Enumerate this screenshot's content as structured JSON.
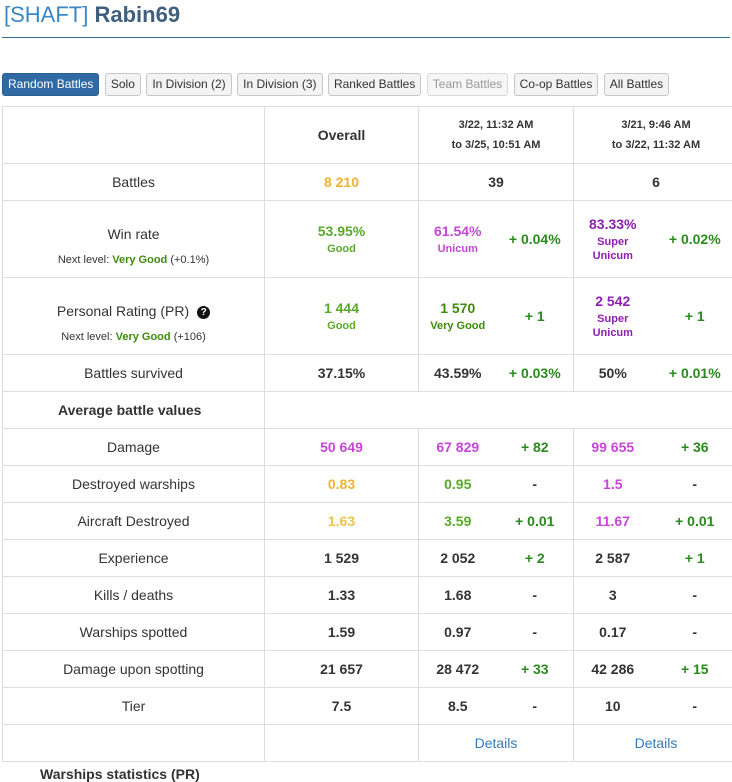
{
  "header": {
    "clan": "[SHAFT]",
    "nick": "Rabin69"
  },
  "tabs": [
    "Random Battles",
    "Solo",
    "In Division (2)",
    "In Division (3)",
    "Ranked Battles",
    "Team Battles",
    "Co-op Battles",
    "All Battles"
  ],
  "columns": {
    "overall": "Overall",
    "period1": {
      "line1": "3/22, 11:32 AM",
      "line2": "to 3/25, 10:51 AM"
    },
    "period2": {
      "line1": "3/21, 9:46 AM",
      "line2": "to 3/22, 11:32 AM"
    }
  },
  "rows": {
    "battles": {
      "label": "Battles",
      "overall": "8 210",
      "p1": "39",
      "p2": "6"
    },
    "winrate": {
      "label": "Win rate",
      "overall": "53.95%",
      "overall_tier": "Good",
      "p1": "61.54%",
      "p1_tier": "Unicum",
      "p1_delta": "+ 0.04%",
      "p2": "83.33%",
      "p2_tier1": "Super",
      "p2_tier2": "Unicum",
      "p2_delta": "+ 0.02%",
      "next_prefix": "Next level:",
      "next_level": "Very Good",
      "next_delta": "(+0.1%)"
    },
    "pr": {
      "label": "Personal Rating (PR)",
      "help": "?",
      "overall": "1 444",
      "overall_tier": "Good",
      "p1": "1 570",
      "p1_tier": "Very Good",
      "p1_delta": "+ 1",
      "p2": "2 542",
      "p2_tier1": "Super",
      "p2_tier2": "Unicum",
      "p2_delta": "+ 1",
      "next_prefix": "Next level:",
      "next_level": "Very Good",
      "next_delta": "(+106)"
    },
    "survived": {
      "label": "Battles survived",
      "overall": "37.15%",
      "p1": "43.59%",
      "p1_delta": "+ 0.03%",
      "p2": "50%",
      "p2_delta": "+ 0.01%"
    },
    "section": "Average battle values",
    "damage": {
      "label": "Damage",
      "overall": "50 649",
      "p1": "67 829",
      "p1_delta": "+ 82",
      "p2": "99 655",
      "p2_delta": "+ 36"
    },
    "destroyed": {
      "label": "Destroyed warships",
      "overall": "0.83",
      "p1": "0.95",
      "p1_delta": "-",
      "p2": "1.5",
      "p2_delta": "-"
    },
    "aircraft": {
      "label": "Aircraft Destroyed",
      "overall": "1.63",
      "p1": "3.59",
      "p1_delta": "+ 0.01",
      "p2": "11.67",
      "p2_delta": "+ 0.01"
    },
    "experience": {
      "label": "Experience",
      "overall": "1 529",
      "p1": "2 052",
      "p1_delta": "+ 2",
      "p2": "2 587",
      "p2_delta": "+ 1"
    },
    "kd": {
      "label": "Kills / deaths",
      "overall": "1.33",
      "p1": "1.68",
      "p1_delta": "-",
      "p2": "3",
      "p2_delta": "-"
    },
    "spotted": {
      "label": "Warships spotted",
      "overall": "1.59",
      "p1": "0.97",
      "p1_delta": "-",
      "p2": "0.17",
      "p2_delta": "-"
    },
    "spotdmg": {
      "label": "Damage upon spotting",
      "overall": "21 657",
      "p1": "28 472",
      "p1_delta": "+ 33",
      "p2": "42 286",
      "p2_delta": "+ 15"
    },
    "tier": {
      "label": "Tier",
      "overall": "7.5",
      "p1": "8.5",
      "p1_delta": "-",
      "p2": "10",
      "p2_delta": "-"
    },
    "details": {
      "p1": "Details",
      "p2": "Details"
    }
  },
  "bottom_label": "Warships statistics (PR)",
  "colors": {
    "accent": "#2f6aa4",
    "good": "#5aa82a",
    "average": "#f0b330",
    "unicum": "#c646d6",
    "super_unicum": "#8e1fb0",
    "delta": "#2a8a1d",
    "link": "#337ab7"
  }
}
